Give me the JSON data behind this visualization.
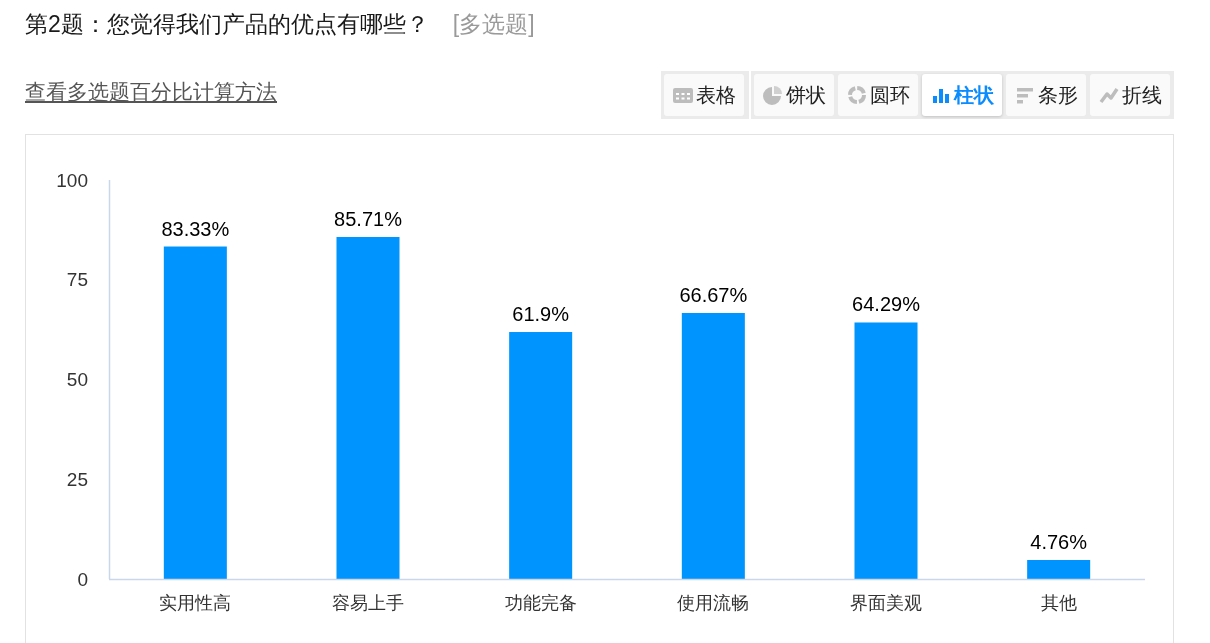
{
  "chart_data": {
    "type": "bar",
    "title": "第2题：您觉得我们产品的优点有哪些？",
    "subtitle": "[多选题]",
    "annotations": [
      "查看多选题百分比计算方法",
      "表格",
      "饼状",
      "圆环",
      "柱状",
      "条形",
      "折线"
    ],
    "categories": [
      "实用性高",
      "容易上手",
      "功能完备",
      "使用流畅",
      "界面美观",
      "其他"
    ],
    "values": [
      83.33,
      85.71,
      61.9,
      66.67,
      64.29,
      4.76
    ],
    "value_labels": [
      "83.33%",
      "85.71%",
      "61.9%",
      "66.67%",
      "64.29%",
      "4.76%"
    ],
    "color": "#0094ff",
    "ylim": [
      0,
      100
    ],
    "yticks": [
      0,
      25,
      50,
      75,
      100
    ]
  }
}
